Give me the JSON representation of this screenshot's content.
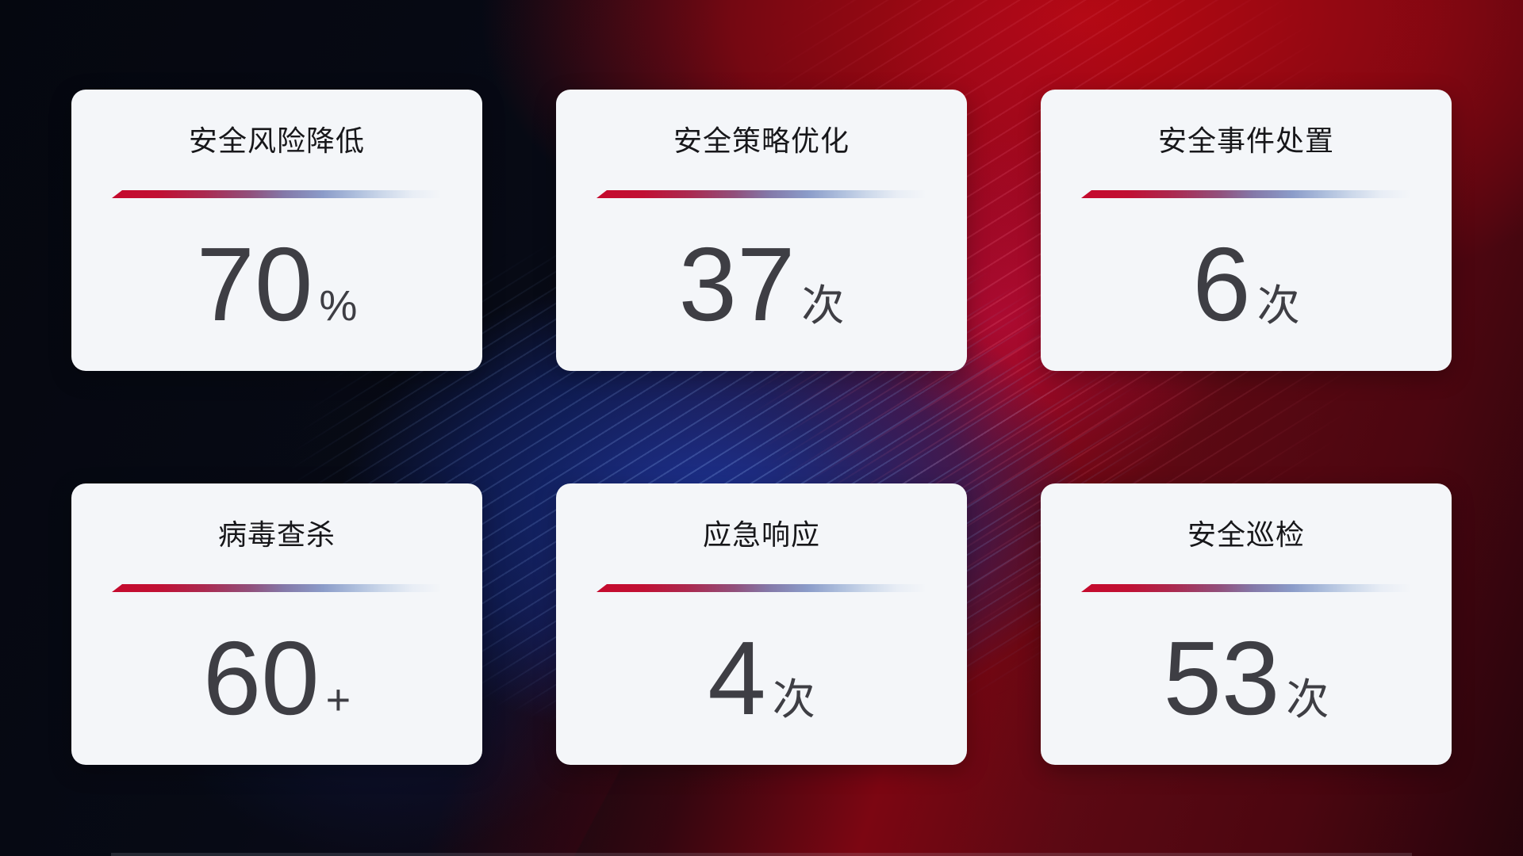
{
  "cards": [
    {
      "title": "安全风险降低",
      "value": "70",
      "suffix": "%"
    },
    {
      "title": "安全策略优化",
      "value": "37",
      "suffix": "次"
    },
    {
      "title": "安全事件处置",
      "value": "6",
      "suffix": "次"
    },
    {
      "title": "病毒查杀",
      "value": "60",
      "suffix": "+"
    },
    {
      "title": "应急响应",
      "value": "4",
      "suffix": "次"
    },
    {
      "title": "安全巡检",
      "value": "53",
      "suffix": "次"
    }
  ],
  "colors": {
    "card_background": "#f4f6f9",
    "title_text": "#17171a",
    "value_text": "#3e3e44",
    "divider_red": "#c50a2d",
    "divider_blue": "#8b9cc9",
    "background_dark_navy": "#070a13",
    "background_red": "#99081a",
    "background_magenta": "#cd0e46",
    "background_blue_glow": "#1a369e"
  }
}
